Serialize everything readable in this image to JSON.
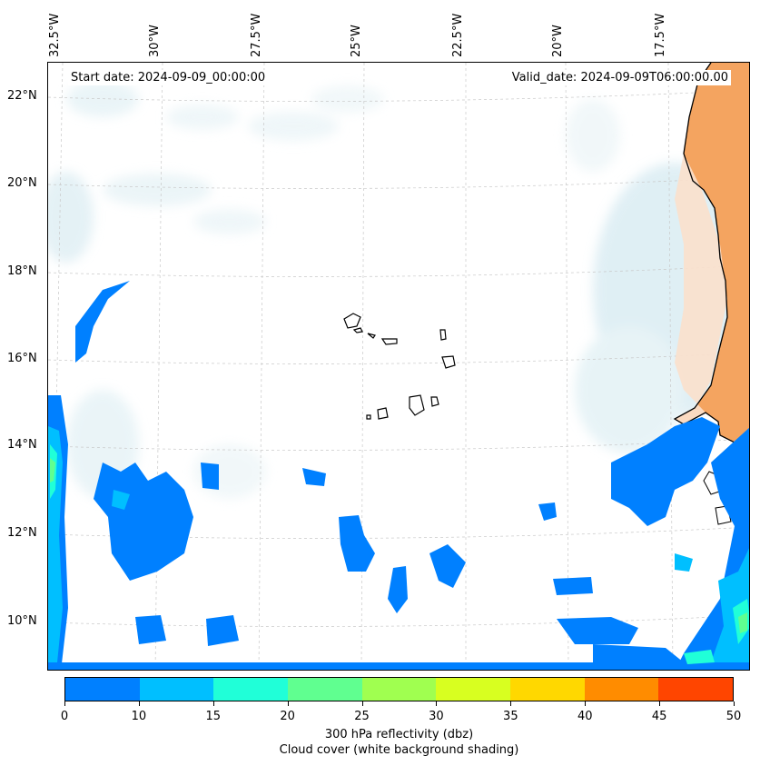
{
  "map": {
    "start_date": "Start date: 2024-09-09_00:00:00",
    "valid_date": "Valid_date: 2024-09-09T06:00:00.00",
    "lon_labels": [
      "32.5°W",
      "30°W",
      "27.5°W",
      "25°W",
      "22.5°W",
      "20°W",
      "17.5°W"
    ],
    "lat_labels": [
      "22°N",
      "20°N",
      "18°N",
      "16°N",
      "14°N",
      "12°N",
      "10°N"
    ],
    "colors": {
      "land": "#f4a460",
      "coast": "#000000",
      "cloud": "#cfe6ee"
    }
  },
  "colorbar": {
    "ticks": [
      "0",
      "10",
      "15",
      "20",
      "25",
      "30",
      "35",
      "40",
      "45",
      "50"
    ],
    "colors": [
      "#0080ff",
      "#00bfff",
      "#20ffd8",
      "#60ff90",
      "#a0ff50",
      "#d8ff20",
      "#ffd800",
      "#ff8c00",
      "#ff4500"
    ],
    "label_line1": "300 hPa reflectivity (dbz)",
    "label_line2": "Cloud cover (white background shading)"
  }
}
